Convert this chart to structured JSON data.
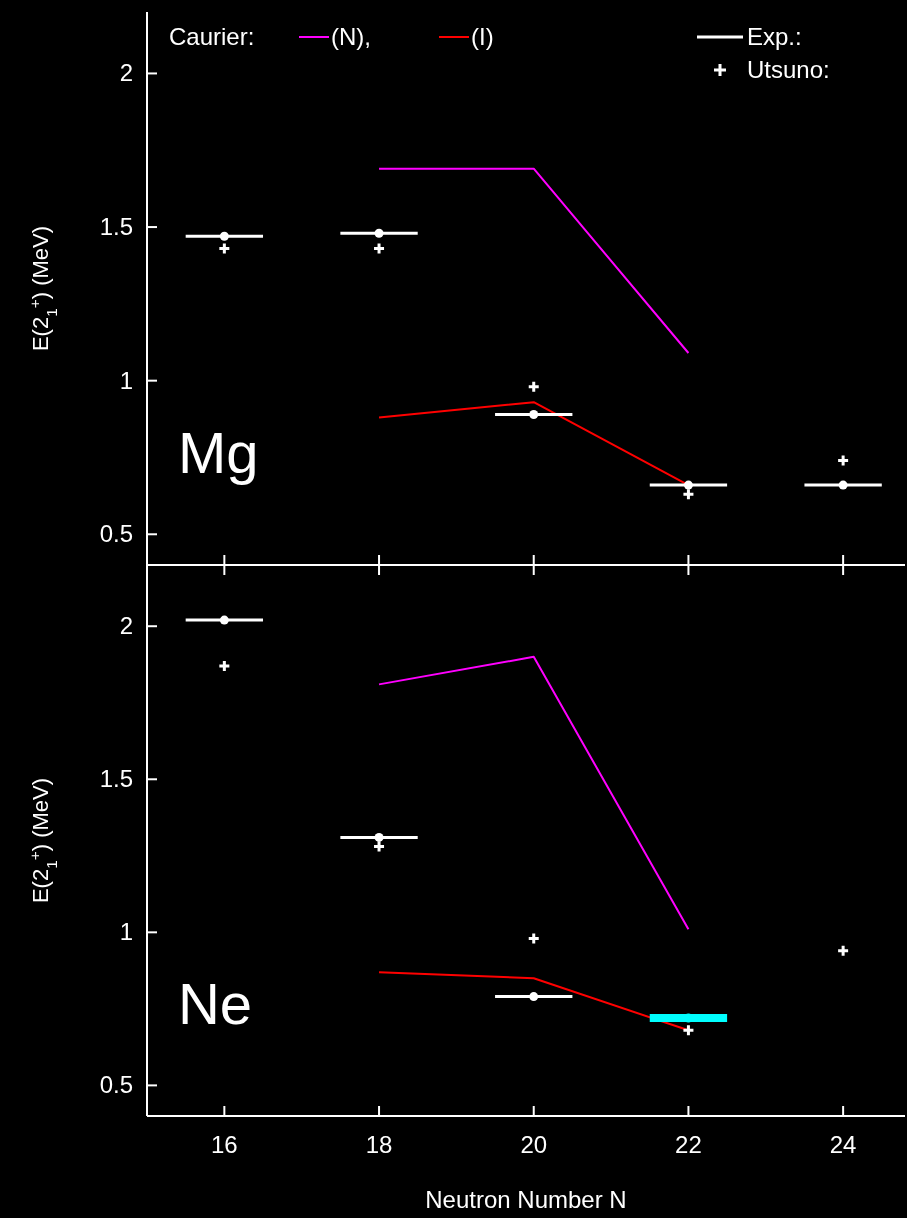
{
  "chart_data": [
    {
      "type": "line",
      "legend": "top",
      "legend_title": "Caurier:",
      "ylabel": "E(2$_{1}$$^{+}$)  (MeV)",
      "annotations": [
        "Mg"
      ],
      "x": [
        16,
        18,
        20,
        22,
        24
      ],
      "xlim": [
        15,
        24.8
      ],
      "xticks": [
        16,
        18,
        20,
        22,
        24
      ],
      "ylim": [
        0.4,
        2.2
      ],
      "yticks": [
        0.5,
        1,
        1.5,
        2
      ],
      "tick_labels": "y",
      "series": [
        {
          "name": "(N),",
          "color": "#ff00ff",
          "values": [
            null,
            1.69,
            1.69,
            1.09,
            null
          ]
        },
        {
          "name": "(I)",
          "color": "#ff0000",
          "values": [
            null,
            0.88,
            0.93,
            0.66,
            null
          ]
        },
        {
          "name": "Exp.:",
          "type": "scatter",
          "color": "#ffffff",
          "values": [
            1.47,
            1.48,
            0.89,
            0.66,
            0.66
          ],
          "xerrors": [
            0.5,
            0.5,
            0.5,
            0.5,
            0.5
          ]
        },
        {
          "name": "Utsuno:",
          "type": "scatter",
          "marker": "cross",
          "color": "#ffffff",
          "values": [
            1.43,
            1.43,
            0.98,
            0.63,
            0.74
          ]
        }
      ]
    },
    {
      "type": "line",
      "ylabel": "E(2$_{1}$$^{+}$)  (MeV)",
      "xlabel": "Neutron Number N",
      "annotations": [
        "Ne"
      ],
      "x": [
        16,
        18,
        20,
        22,
        24
      ],
      "xlim": [
        15,
        24.8
      ],
      "xticks": [
        16,
        18,
        20,
        22,
        24
      ],
      "ylim": [
        0.4,
        2.2
      ],
      "yticks": [
        0.5,
        1,
        1.5,
        2
      ],
      "series": [
        {
          "color": "#ff00ff",
          "values": [
            null,
            1.81,
            1.9,
            1.01,
            null
          ]
        },
        {
          "color": "#ff0000",
          "values": [
            null,
            0.87,
            0.85,
            0.68,
            null
          ]
        },
        {
          "type": "scatter",
          "color": "#ffffff",
          "colors": [
            "#ffffff",
            "#ffffff",
            "#ffffff",
            "#00ffff",
            null
          ],
          "values": [
            2.02,
            1.31,
            0.79,
            0.72,
            null
          ],
          "xerrors": [
            0.5,
            0.5,
            0.5,
            0.5,
            null
          ]
        },
        {
          "type": "scatter",
          "marker": "cross",
          "color": "#ffffff",
          "values": [
            1.87,
            1.28,
            0.98,
            0.68,
            0.94
          ]
        }
      ]
    }
  ]
}
